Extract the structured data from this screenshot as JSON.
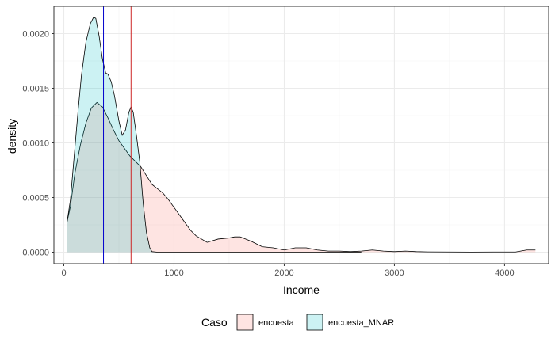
{
  "chart_data": {
    "type": "area",
    "xlabel": "Income",
    "ylabel": "density",
    "xlim": [
      -90,
      4400
    ],
    "ylim": [
      -0.000105,
      0.00225
    ],
    "x_ticks": [
      0,
      1000,
      2000,
      3000,
      4000
    ],
    "x_tick_labels": [
      "0",
      "1000",
      "2000",
      "3000",
      "4000"
    ],
    "y_ticks": [
      0,
      0.0005,
      0.001,
      0.0015,
      0.002
    ],
    "y_tick_labels": [
      "0.0000",
      "0.0005",
      "0.0010",
      "0.0015",
      "0.0020"
    ],
    "grid": true,
    "legend_position": "bottom",
    "legend_title": "Caso",
    "series": [
      {
        "name": "encuesta",
        "fill": "#f8766d",
        "fill_opacity": 0.2,
        "points": [
          [
            30,
            0.00028
          ],
          [
            60,
            0.00042
          ],
          [
            100,
            0.00072
          ],
          [
            150,
            0.00098
          ],
          [
            200,
            0.00118
          ],
          [
            250,
            0.00132
          ],
          [
            300,
            0.00137
          ],
          [
            350,
            0.00133
          ],
          [
            400,
            0.00123
          ],
          [
            450,
            0.00112
          ],
          [
            500,
            0.00102
          ],
          [
            550,
            0.00095
          ],
          [
            600,
            0.00088
          ],
          [
            650,
            0.00083
          ],
          [
            700,
            0.00078
          ],
          [
            750,
            0.0007
          ],
          [
            800,
            0.00062
          ],
          [
            850,
            0.00058
          ],
          [
            900,
            0.00054
          ],
          [
            950,
            0.00048
          ],
          [
            1000,
            0.00041
          ],
          [
            1050,
            0.00034
          ],
          [
            1100,
            0.00027
          ],
          [
            1150,
            0.0002
          ],
          [
            1200,
            0.00015
          ],
          [
            1300,
            9e-05
          ],
          [
            1400,
            0.00012
          ],
          [
            1500,
            0.00013
          ],
          [
            1550,
            0.00014
          ],
          [
            1600,
            0.00014
          ],
          [
            1700,
            0.0001
          ],
          [
            1800,
            5e-05
          ],
          [
            1900,
            4e-05
          ],
          [
            2000,
            2e-05
          ],
          [
            2100,
            4e-05
          ],
          [
            2200,
            4e-05
          ],
          [
            2300,
            2e-05
          ],
          [
            2400,
            1e-05
          ],
          [
            2500,
            1e-05
          ],
          [
            2600,
            5e-06
          ],
          [
            2700,
            1e-05
          ],
          [
            2800,
            2e-05
          ],
          [
            2900,
            1e-05
          ],
          [
            3000,
            5e-06
          ],
          [
            3100,
            1e-05
          ],
          [
            3200,
            5e-06
          ],
          [
            3300,
            3e-06
          ],
          [
            3500,
            2e-06
          ],
          [
            3700,
            1e-06
          ],
          [
            3900,
            2e-06
          ],
          [
            4100,
            2e-06
          ],
          [
            4200,
            2e-05
          ],
          [
            4280,
            2e-05
          ]
        ]
      },
      {
        "name": "encuesta_MNAR",
        "fill": "#00bfc4",
        "fill_opacity": 0.2,
        "points": [
          [
            30,
            0.00028
          ],
          [
            60,
            0.00048
          ],
          [
            100,
            0.00095
          ],
          [
            130,
            0.0013
          ],
          [
            160,
            0.00162
          ],
          [
            200,
            0.00192
          ],
          [
            240,
            0.00209
          ],
          [
            270,
            0.00215
          ],
          [
            290,
            0.00214
          ],
          [
            320,
            0.00198
          ],
          [
            350,
            0.00177
          ],
          [
            380,
            0.00164
          ],
          [
            400,
            0.00163
          ],
          [
            430,
            0.00156
          ],
          [
            460,
            0.00143
          ],
          [
            500,
            0.0012
          ],
          [
            530,
            0.00107
          ],
          [
            560,
            0.00112
          ],
          [
            590,
            0.00128
          ],
          [
            610,
            0.00133
          ],
          [
            630,
            0.00128
          ],
          [
            660,
            0.00106
          ],
          [
            690,
            0.00082
          ],
          [
            720,
            0.00045
          ],
          [
            750,
            0.00018
          ],
          [
            780,
            4e-05
          ],
          [
            800,
            5e-06
          ],
          [
            850,
            0
          ],
          [
            900,
            0
          ],
          [
            1000,
            0
          ],
          [
            1200,
            0
          ],
          [
            1500,
            0
          ],
          [
            2000,
            0
          ],
          [
            2500,
            0
          ],
          [
            2700,
            0
          ]
        ]
      }
    ],
    "vlines": [
      {
        "x": 360,
        "color": "#0000cd"
      },
      {
        "x": 610,
        "color": "#cd2626"
      }
    ]
  }
}
